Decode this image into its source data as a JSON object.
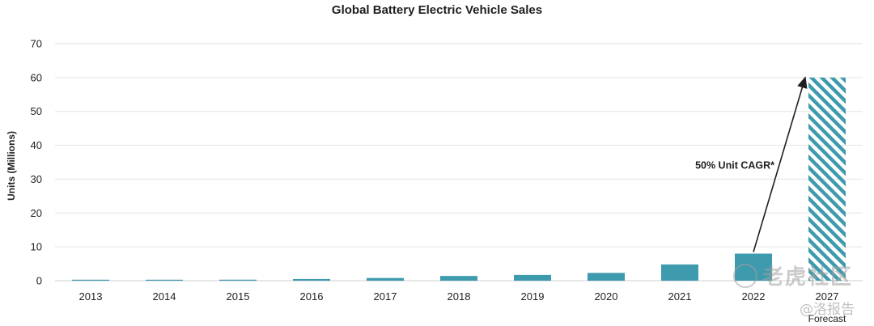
{
  "chart_data": {
    "type": "bar",
    "title": "Global Battery Electric Vehicle Sales",
    "xlabel": "",
    "ylabel": "Units (Millions)",
    "ylim": [
      0,
      70
    ],
    "yticks": [
      0,
      10,
      20,
      30,
      40,
      50,
      60,
      70
    ],
    "grid": true,
    "categories": [
      "2013",
      "2014",
      "2015",
      "2016",
      "2017",
      "2018",
      "2019",
      "2020",
      "2021",
      "2022",
      "2027"
    ],
    "category_sublabels": [
      "",
      "",
      "",
      "",
      "",
      "",
      "",
      "",
      "",
      "",
      "Forecast"
    ],
    "values": [
      0.1,
      0.2,
      0.3,
      0.5,
      0.8,
      1.4,
      1.7,
      2.3,
      4.8,
      8.0,
      60.0
    ],
    "forecast_index": 10,
    "annotations": [
      {
        "text": "50% Unit CAGR*",
        "from_category": "2022",
        "to_category": "2027"
      }
    ],
    "colors": {
      "bar": "#3e9aad",
      "forecast_hatch": "#3e9aad",
      "grid": "#e3e3e3",
      "text": "#1f1f1f",
      "arrow": "#1f1f1f"
    }
  },
  "watermark": {
    "brand": "老虎社区",
    "report": "@洛报告"
  }
}
